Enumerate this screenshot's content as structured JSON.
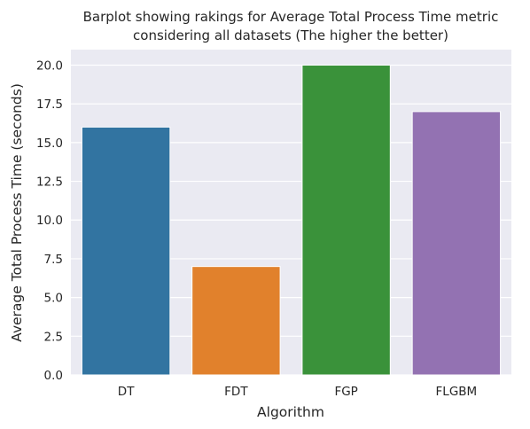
{
  "chart_data": {
    "type": "bar",
    "title_lines": [
      "Barplot showing rakings for Average Total Process Time metric",
      "considering all datasets (The higher the better)"
    ],
    "xlabel": "Algorithm",
    "ylabel": "Average Total Process Time (seconds)",
    "categories": [
      "DT",
      "FDT",
      "FGP",
      "FLGBM"
    ],
    "values": [
      16,
      7,
      20,
      17
    ],
    "colors": [
      "#3274a1",
      "#e1812c",
      "#3a923a",
      "#9372b2"
    ],
    "ylim": [
      0,
      21
    ],
    "yticks": [
      "0.0",
      "2.5",
      "5.0",
      "7.5",
      "10.0",
      "12.5",
      "15.0",
      "17.5",
      "20.0"
    ],
    "grid": true,
    "background": "#eaeaf2"
  }
}
